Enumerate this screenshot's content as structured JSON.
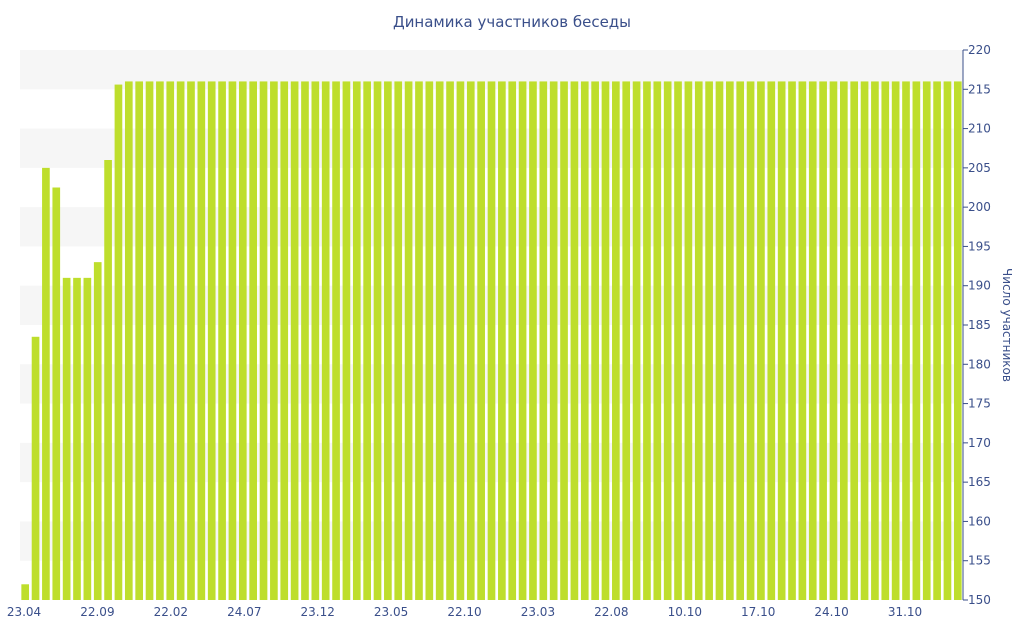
{
  "chart_data": {
    "type": "bar",
    "title": "Динамика участников беседы",
    "xlabel": "",
    "ylabel": "Число участников",
    "ylim": [
      150,
      220
    ],
    "y_ticks": [
      150,
      155,
      160,
      165,
      170,
      175,
      180,
      185,
      190,
      195,
      200,
      205,
      210,
      215,
      220
    ],
    "x_tick_labels": [
      "23.04",
      "22.09",
      "22.02",
      "24.07",
      "23.12",
      "23.05",
      "22.10",
      "23.03",
      "22.08",
      "10.10",
      "17.10",
      "24.10",
      "31.10"
    ],
    "grid": "horizontal bands",
    "legend": "none",
    "bar_color": "#bede2c",
    "band_color": "#f6f6f6",
    "axis_color": "#3a4f8a",
    "values": [
      152,
      183.5,
      205,
      202.5,
      191,
      191,
      191,
      193,
      206,
      215.6,
      216,
      216,
      216,
      216,
      216,
      216,
      216,
      216,
      216,
      216,
      216,
      216,
      216,
      216,
      216,
      216,
      216,
      216,
      216,
      216,
      216,
      216,
      216,
      216,
      216,
      216,
      216,
      216,
      216,
      216,
      216,
      216,
      216,
      216,
      216,
      216,
      216,
      216,
      216,
      216,
      216,
      216,
      216,
      216,
      216,
      216,
      216,
      216,
      216,
      216,
      216,
      216,
      216,
      216,
      216,
      216,
      216,
      216,
      216,
      216,
      216,
      216,
      216,
      216,
      216,
      216,
      216,
      216,
      216,
      216,
      216,
      216,
      216,
      216,
      216,
      216,
      216,
      216,
      216,
      216,
      216
    ]
  }
}
